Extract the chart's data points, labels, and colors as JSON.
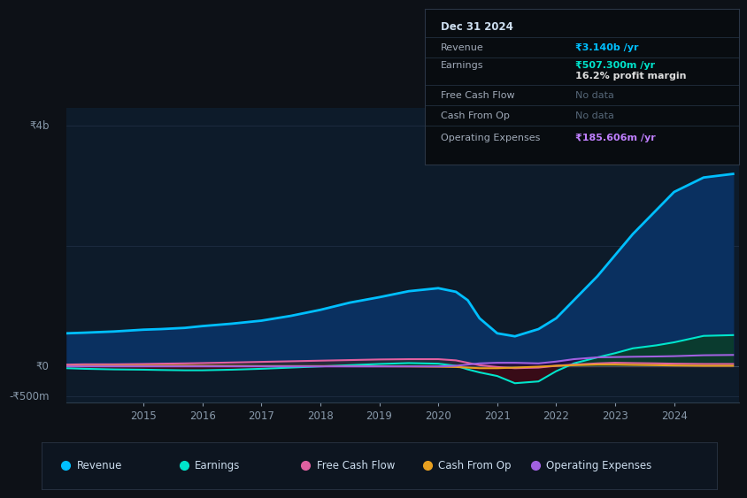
{
  "background_color": "#0d1117",
  "plot_bg_color": "#0d1b2a",
  "ylabel_top": "₹4b",
  "ylabel_zero": "₹0",
  "ylabel_bottom": "-₹500m",
  "x_labels": [
    "2015",
    "2016",
    "2017",
    "2018",
    "2019",
    "2020",
    "2021",
    "2022",
    "2023",
    "2024"
  ],
  "legend_items": [
    "Revenue",
    "Earnings",
    "Free Cash Flow",
    "Cash From Op",
    "Operating Expenses"
  ],
  "legend_colors": [
    "#00bfff",
    "#00e5cc",
    "#e060a0",
    "#e8a020",
    "#a060e0"
  ],
  "info_box": {
    "date": "Dec 31 2024",
    "revenue_label": "Revenue",
    "revenue_value": "₹3.140b /yr",
    "earnings_label": "Earnings",
    "earnings_value": "₹507.300m /yr",
    "margin_text": "16.2% profit margin",
    "fcf_label": "Free Cash Flow",
    "fcf_value": "No data",
    "cashop_label": "Cash From Op",
    "cashop_value": "No data",
    "opex_label": "Operating Expenses",
    "opex_value": "₹185.606m /yr"
  },
  "revenue_color": "#00bfff",
  "earnings_color": "#00e5cc",
  "fcf_color": "#e060a0",
  "cashop_color": "#e8a020",
  "opex_color": "#a060e0",
  "revenue_fill_color": "#0a3060",
  "years": [
    2013.7,
    2014.0,
    2014.5,
    2015.0,
    2015.3,
    2015.7,
    2016.0,
    2016.5,
    2017.0,
    2017.5,
    2018.0,
    2018.5,
    2019.0,
    2019.5,
    2020.0,
    2020.3,
    2020.5,
    2020.7,
    2021.0,
    2021.3,
    2021.7,
    2022.0,
    2022.3,
    2022.7,
    2023.0,
    2023.3,
    2023.7,
    2024.0,
    2024.5,
    2025.0
  ],
  "revenue": [
    550,
    560,
    580,
    610,
    620,
    640,
    670,
    710,
    760,
    840,
    940,
    1060,
    1150,
    1250,
    1300,
    1240,
    1100,
    800,
    550,
    500,
    620,
    800,
    1100,
    1500,
    1850,
    2200,
    2600,
    2900,
    3140,
    3200
  ],
  "earnings": [
    -30,
    -40,
    -50,
    -55,
    -60,
    -65,
    -65,
    -55,
    -40,
    -20,
    0,
    20,
    40,
    55,
    45,
    10,
    -50,
    -100,
    -160,
    -280,
    -250,
    -80,
    50,
    150,
    220,
    300,
    350,
    400,
    507,
    520
  ],
  "fcf": [
    30,
    35,
    35,
    40,
    45,
    50,
    55,
    65,
    75,
    85,
    95,
    105,
    115,
    120,
    120,
    100,
    60,
    20,
    -10,
    -30,
    -20,
    10,
    30,
    50,
    60,
    55,
    50,
    45,
    40,
    40
  ],
  "cashop": [
    5,
    8,
    10,
    12,
    12,
    12,
    10,
    8,
    5,
    5,
    5,
    3,
    2,
    0,
    -5,
    -10,
    -20,
    -30,
    -30,
    -20,
    -5,
    10,
    20,
    30,
    30,
    25,
    20,
    15,
    10,
    10
  ],
  "opex": [
    0,
    0,
    0,
    0,
    0,
    0,
    0,
    0,
    0,
    0,
    0,
    0,
    0,
    0,
    0,
    10,
    30,
    50,
    60,
    60,
    50,
    80,
    120,
    150,
    155,
    160,
    165,
    170,
    185,
    190
  ]
}
